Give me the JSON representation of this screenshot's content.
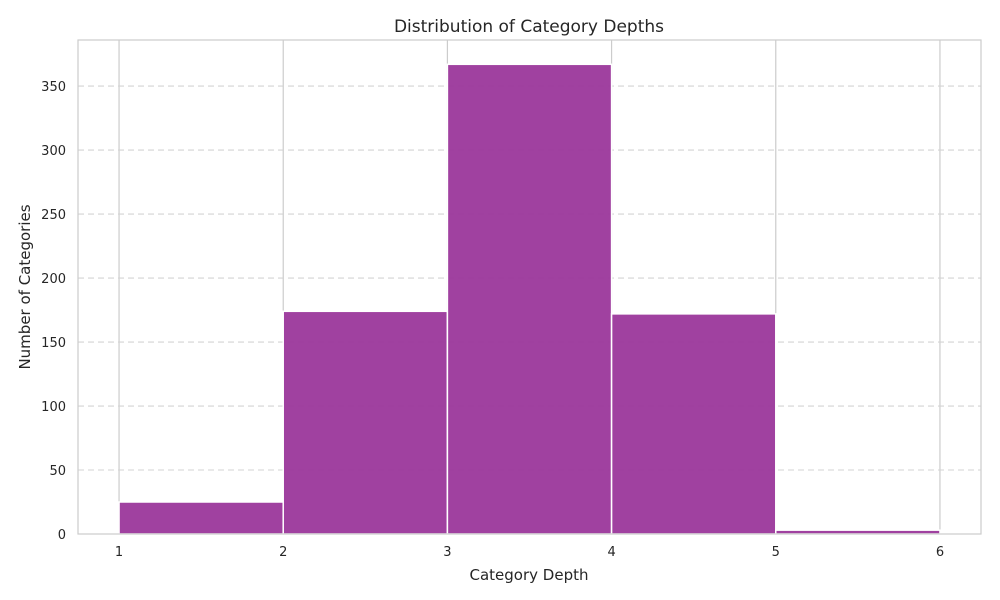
{
  "chart_data": {
    "type": "bar",
    "title": "Distribution of Category Depths",
    "xlabel": "Category Depth",
    "ylabel": "Number of Categories",
    "bin_edges": [
      1,
      2,
      3,
      4,
      5,
      6
    ],
    "values": [
      25,
      174,
      367,
      172,
      3
    ],
    "x_ticks": [
      "1",
      "2",
      "3",
      "4",
      "5",
      "6"
    ],
    "y_ticks": [
      "0",
      "50",
      "100",
      "150",
      "200",
      "250",
      "300",
      "350"
    ],
    "xlim": [
      0.75,
      6.25
    ],
    "ylim": [
      0,
      386
    ],
    "x_grid": true,
    "y_grid": true,
    "bar_color": "#9b379b"
  }
}
